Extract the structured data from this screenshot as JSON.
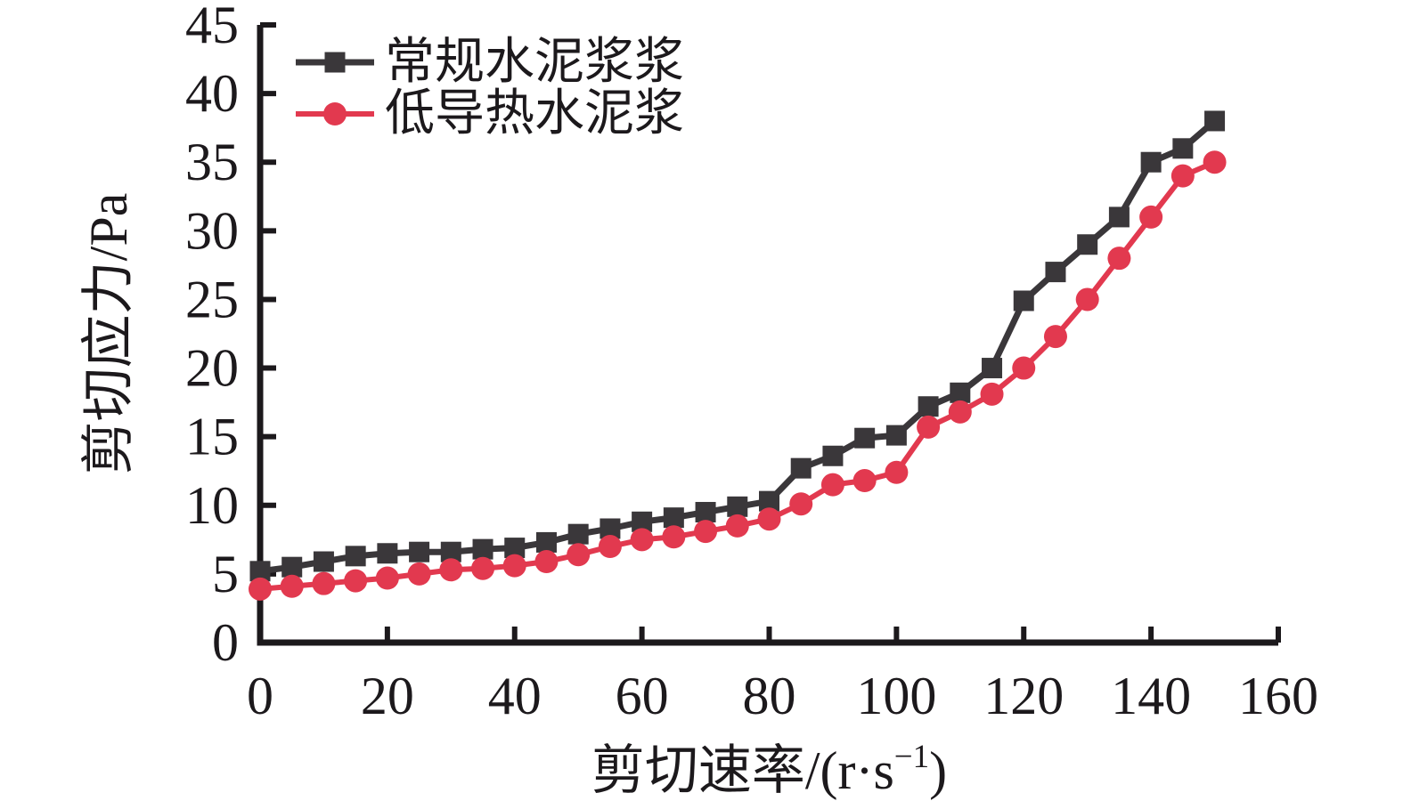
{
  "figure": {
    "background": "#ffffff"
  },
  "chart_data": {
    "type": "line",
    "title": "",
    "xlabel": "剪切速率/(r·s⁻¹)",
    "xlabel_parts": {
      "pre": "剪切速率/(r·s",
      "sup": "−1",
      "post": ")"
    },
    "ylabel": "剪切应力/Pa",
    "xlim": [
      0,
      160
    ],
    "ylim": [
      0,
      45
    ],
    "x_ticks": [
      0,
      20,
      40,
      60,
      80,
      100,
      120,
      140,
      160
    ],
    "y_ticks": [
      0,
      5,
      10,
      15,
      20,
      25,
      30,
      35,
      40,
      45
    ],
    "grid": false,
    "legend_position": "top-left",
    "axis_color": "#1c191c",
    "x": [
      0,
      5,
      10,
      15,
      20,
      25,
      30,
      35,
      40,
      45,
      50,
      55,
      60,
      65,
      70,
      75,
      80,
      85,
      90,
      95,
      100,
      105,
      110,
      115,
      120,
      125,
      130,
      135,
      140,
      145,
      150
    ],
    "series": [
      {
        "name": "常规水泥浆浆",
        "color": "#3a373a",
        "marker": "square",
        "values": [
          5.2,
          5.5,
          5.9,
          6.3,
          6.5,
          6.6,
          6.6,
          6.8,
          6.9,
          7.3,
          7.9,
          8.3,
          8.8,
          9.1,
          9.5,
          9.9,
          10.3,
          12.7,
          13.6,
          14.9,
          15.1,
          17.2,
          18.2,
          20.0,
          24.9,
          27.0,
          29.0,
          31.0,
          35.0,
          36.0,
          38.0
        ]
      },
      {
        "name": "低导热水泥浆",
        "color": "#e2394f",
        "marker": "circle",
        "values": [
          3.9,
          4.1,
          4.3,
          4.5,
          4.7,
          5.0,
          5.3,
          5.4,
          5.6,
          5.9,
          6.4,
          7.0,
          7.5,
          7.7,
          8.1,
          8.5,
          9.0,
          10.1,
          11.5,
          11.8,
          12.4,
          15.7,
          16.8,
          18.1,
          20.0,
          22.3,
          25.0,
          28.0,
          31.0,
          34.0,
          35.0
        ]
      }
    ]
  }
}
